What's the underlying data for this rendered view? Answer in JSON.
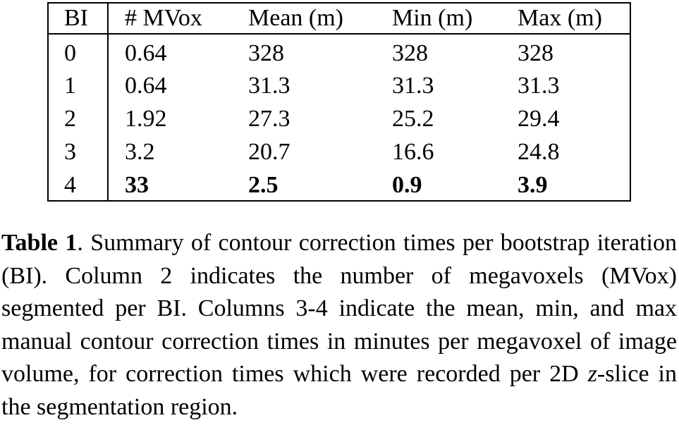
{
  "table": {
    "headers": [
      "BI",
      "# MVox",
      "Mean (m)",
      "Min (m)",
      "Max (m)"
    ],
    "rows": [
      [
        "0",
        "0.64",
        "328",
        "328",
        "328"
      ],
      [
        "1",
        "0.64",
        "31.3",
        "31.3",
        "31.3"
      ],
      [
        "2",
        "1.92",
        "27.3",
        "25.2",
        "29.4"
      ],
      [
        "3",
        "3.2",
        "20.7",
        "16.6",
        "24.8"
      ],
      [
        "4",
        "33",
        "2.5",
        "0.9",
        "3.9"
      ]
    ]
  },
  "caption": {
    "label": "Table 1",
    "label_sep": ".",
    "text_part1": " Summary of contour correction times per bootstrap iteration (BI). Column 2 indicates the number of megavoxels (MVox) segmented per BI. Columns 3-4 indicate the mean, min, and max manual contour correction times in minutes per megavoxel of image volume, for correction times which were recorded per 2D ",
    "math_var": "z",
    "text_part2": "-slice in the segmentation region."
  }
}
